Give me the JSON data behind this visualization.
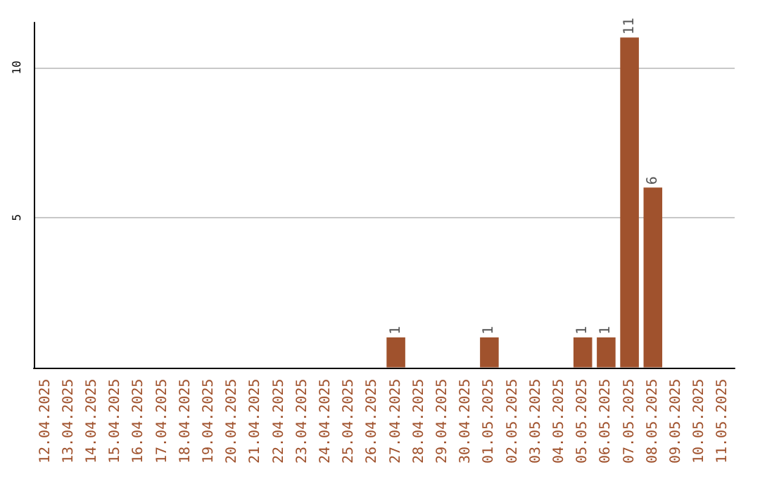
{
  "chart_data": {
    "type": "bar",
    "categories": [
      "12.04.2025",
      "13.04.2025",
      "14.04.2025",
      "15.04.2025",
      "16.04.2025",
      "17.04.2025",
      "18.04.2025",
      "19.04.2025",
      "20.04.2025",
      "21.04.2025",
      "22.04.2025",
      "23.04.2025",
      "24.04.2025",
      "25.04.2025",
      "26.04.2025",
      "27.04.2025",
      "28.04.2025",
      "29.04.2025",
      "30.04.2025",
      "01.05.2025",
      "02.05.2025",
      "03.05.2025",
      "04.05.2025",
      "05.05.2025",
      "06.05.2025",
      "07.05.2025",
      "08.05.2025",
      "09.05.2025",
      "10.05.2025",
      "11.05.2025"
    ],
    "values": [
      0,
      0,
      0,
      0,
      0,
      0,
      0,
      0,
      0,
      0,
      0,
      0,
      0,
      0,
      0,
      1,
      0,
      0,
      0,
      1,
      0,
      0,
      0,
      1,
      1,
      11,
      6,
      0,
      0,
      0
    ],
    "value_labels": [
      null,
      null,
      null,
      null,
      null,
      null,
      null,
      null,
      null,
      null,
      null,
      null,
      null,
      null,
      null,
      "1",
      null,
      null,
      null,
      "1",
      null,
      null,
      null,
      "1",
      "1",
      "11",
      "6",
      null,
      null,
      null
    ],
    "color": "#a0522d",
    "ylim": [
      0,
      11.5
    ],
    "yticks": [
      5,
      10
    ],
    "grid": "y"
  }
}
